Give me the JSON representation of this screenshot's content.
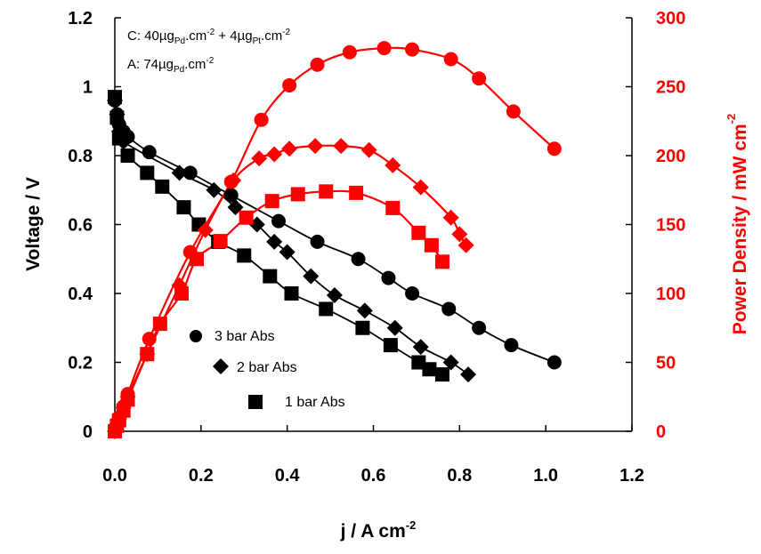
{
  "chart_data": {
    "type": "scatter",
    "x_label": "j / A cm",
    "x_label_sup": "-2",
    "y_left_label": "Voltage / V",
    "y_right_label": "Power Density / mW cm",
    "y_right_label_sup": "-2",
    "x_range": [
      0,
      1.2
    ],
    "y_left_range": [
      0,
      1.2
    ],
    "y_right_range": [
      0,
      300
    ],
    "x_ticks": [
      "0.0",
      "0.2",
      "0.4",
      "0.6",
      "0.8",
      "1.0",
      "1.2"
    ],
    "y_left_ticks": [
      "0",
      "0.2",
      "0.4",
      "0.6",
      "0.8",
      "1",
      "1.2"
    ],
    "y_right_ticks": [
      "0",
      "50",
      "100",
      "150",
      "200",
      "250",
      "300"
    ],
    "grid": false,
    "annotations": {
      "line1": {
        "p1": "C: 40µg",
        "s1": "Pd",
        "p2": ".cm",
        "s2": "-2",
        "p3": " + 4µg",
        "s3": "Pt",
        "p4": ".cm",
        "s4": "-2"
      },
      "line2": {
        "p1": "A: 74µg",
        "s1": "Pd",
        "p2": ".cm",
        "s2": "-2"
      }
    },
    "legend": [
      {
        "name": "3 bar Abs",
        "marker": "circle"
      },
      {
        "name": "2 bar Abs",
        "marker": "diamond"
      },
      {
        "name": "1 bar Abs",
        "marker": "square"
      }
    ],
    "colors": {
      "voltage": "#000000",
      "power": "#ff0000"
    },
    "series": [
      {
        "name": "3 bar Abs",
        "marker": "circle",
        "axis": "left",
        "color": "#000000",
        "x": [
          0.0,
          0.005,
          0.01,
          0.02,
          0.03,
          0.08,
          0.175,
          0.27,
          0.38,
          0.47,
          0.565,
          0.635,
          0.69,
          0.775,
          0.845,
          0.92,
          1.02
        ],
        "y": [
          0.96,
          0.92,
          0.89,
          0.87,
          0.855,
          0.81,
          0.75,
          0.685,
          0.61,
          0.55,
          0.5,
          0.445,
          0.4,
          0.355,
          0.3,
          0.25,
          0.2
        ]
      },
      {
        "name": "2 bar Abs",
        "marker": "diamond",
        "axis": "left",
        "color": "#000000",
        "x": [
          0.0,
          0.005,
          0.01,
          0.02,
          0.15,
          0.23,
          0.28,
          0.33,
          0.37,
          0.4,
          0.455,
          0.51,
          0.58,
          0.65,
          0.71,
          0.78,
          0.82
        ],
        "y": [
          0.96,
          0.92,
          0.87,
          0.84,
          0.75,
          0.7,
          0.65,
          0.6,
          0.55,
          0.52,
          0.45,
          0.395,
          0.35,
          0.3,
          0.245,
          0.2,
          0.165
        ]
      },
      {
        "name": "1 bar Abs",
        "marker": "square",
        "axis": "left",
        "color": "#000000",
        "x": [
          0.0,
          0.005,
          0.01,
          0.03,
          0.075,
          0.11,
          0.16,
          0.195,
          0.24,
          0.3,
          0.36,
          0.41,
          0.49,
          0.575,
          0.64,
          0.705,
          0.73,
          0.76
        ],
        "y": [
          0.97,
          0.91,
          0.85,
          0.8,
          0.75,
          0.71,
          0.65,
          0.6,
          0.55,
          0.51,
          0.45,
          0.4,
          0.355,
          0.3,
          0.25,
          0.2,
          0.18,
          0.165
        ]
      },
      {
        "name": "3 bar Abs power",
        "marker": "circle",
        "axis": "right",
        "color": "#ff0000",
        "x": [
          0.0,
          0.005,
          0.01,
          0.02,
          0.03,
          0.08,
          0.175,
          0.27,
          0.34,
          0.405,
          0.47,
          0.545,
          0.625,
          0.69,
          0.78,
          0.845,
          0.925,
          1.02
        ],
        "y": [
          0,
          5,
          10,
          18,
          27,
          67,
          130,
          181,
          226,
          251,
          266,
          275,
          278,
          277,
          270,
          256,
          232,
          205
        ]
      },
      {
        "name": "2 bar Abs power",
        "marker": "diamond",
        "axis": "right",
        "color": "#ff0000",
        "x": [
          0.0,
          0.005,
          0.01,
          0.02,
          0.03,
          0.075,
          0.15,
          0.21,
          0.275,
          0.335,
          0.37,
          0.405,
          0.465,
          0.525,
          0.59,
          0.645,
          0.71,
          0.78,
          0.8,
          0.815
        ],
        "y": [
          0,
          5,
          9,
          17,
          25,
          56,
          106,
          146,
          182,
          198,
          201,
          205,
          207,
          207,
          204,
          193,
          177,
          155,
          143,
          135
        ]
      },
      {
        "name": "1 bar Abs power",
        "marker": "square",
        "axis": "right",
        "color": "#ff0000",
        "x": [
          0.0,
          0.005,
          0.01,
          0.02,
          0.03,
          0.075,
          0.105,
          0.155,
          0.19,
          0.245,
          0.305,
          0.365,
          0.425,
          0.49,
          0.56,
          0.645,
          0.705,
          0.735,
          0.76
        ],
        "y": [
          0,
          4,
          8,
          15,
          23,
          56,
          78,
          100,
          125,
          138,
          155,
          167,
          172,
          174,
          173,
          162,
          144,
          135,
          123
        ]
      }
    ]
  }
}
